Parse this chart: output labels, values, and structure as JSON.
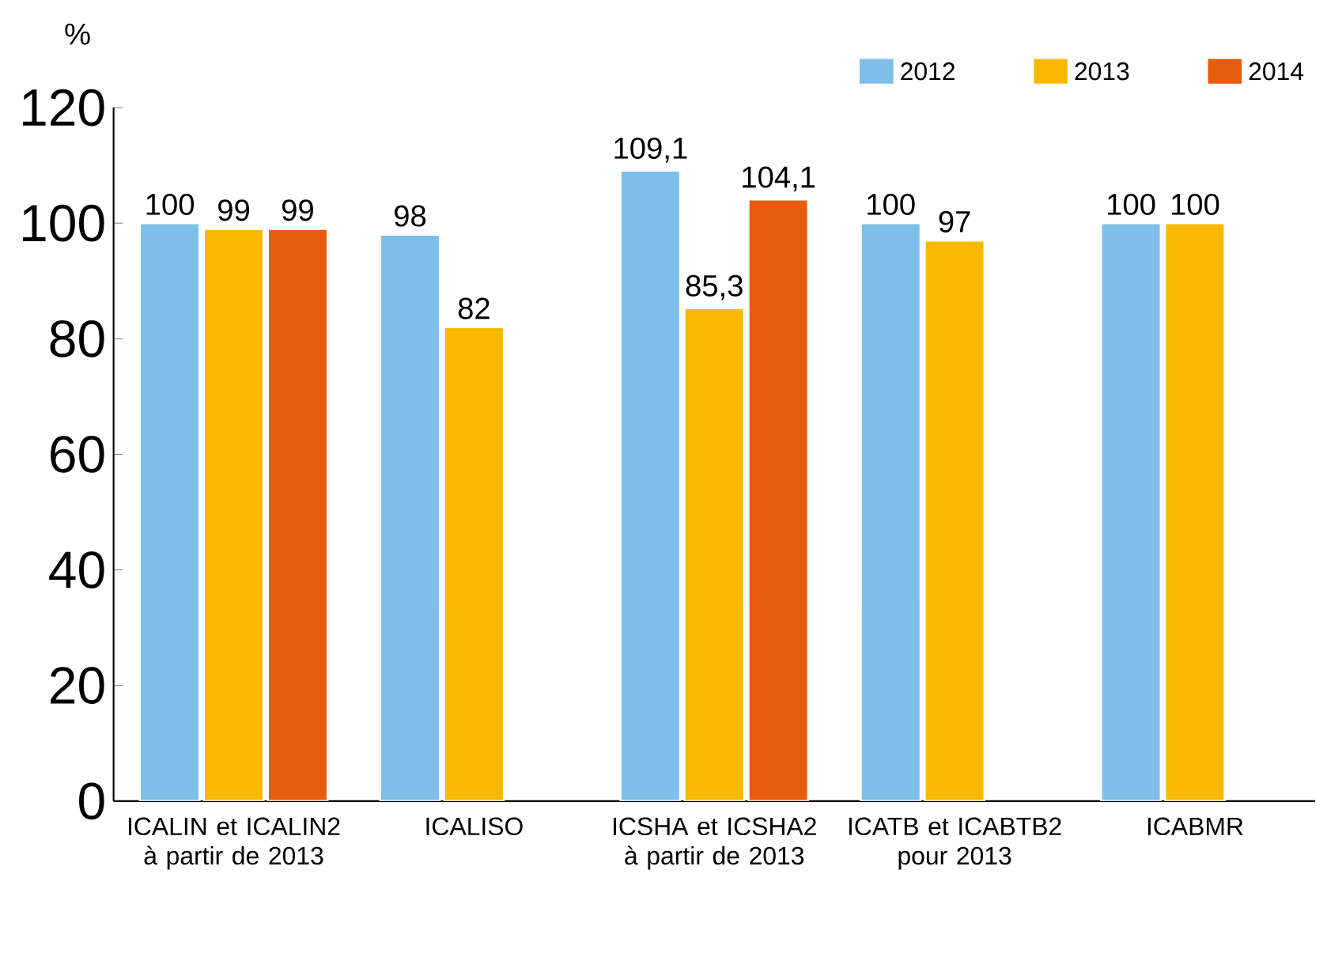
{
  "chart_data": {
    "type": "bar",
    "ylabel": "%",
    "categories": [
      "ICALIN et ICALIN2 à partir de 2013",
      "ICALISO",
      "ICSHA et ICSHA2 à partir de 2013",
      "ICATB et ICABTB2 pour 2013",
      "ICABMR"
    ],
    "series": [
      {
        "name": "2012",
        "color": "#7dbfe8",
        "values": [
          100,
          98,
          109.1,
          100,
          100
        ],
        "value_labels": [
          "100",
          "98",
          "109,1",
          "100",
          "100"
        ]
      },
      {
        "name": "2013",
        "color": "#f9b800",
        "values": [
          99,
          82,
          85.3,
          97,
          100
        ],
        "value_labels": [
          "99",
          "82",
          "85,3",
          "97",
          "100"
        ]
      },
      {
        "name": "2014",
        "color": "#e85c0f",
        "values": [
          99,
          null,
          104.1,
          null,
          null
        ],
        "value_labels": [
          "99",
          null,
          "104,1",
          null,
          null
        ]
      }
    ],
    "ylim": [
      0,
      120
    ],
    "yticks": [
      0,
      20,
      40,
      60,
      80,
      100,
      120
    ],
    "legend": "top right",
    "grid": false
  }
}
